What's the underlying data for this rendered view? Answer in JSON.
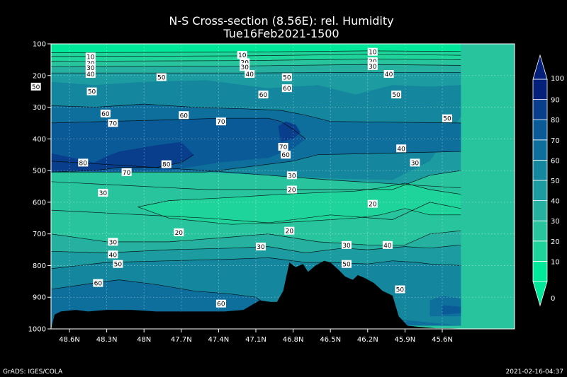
{
  "chart_data": {
    "type": "heatmap",
    "title": "N-S Cross-section (8.56E): rel. Humidity",
    "subtitle": "Tue16Feb2021-1500",
    "x_tick_labels": [
      "48.6N",
      "48.3N",
      "48N",
      "47.7N",
      "47.4N",
      "47.1N",
      "46.8N",
      "46.5N",
      "46.2N",
      "45.9N",
      "45.6N"
    ],
    "y_tick_labels": [
      "100",
      "200",
      "300",
      "400",
      "500",
      "600",
      "700",
      "800",
      "900",
      "1000"
    ],
    "y_values": [
      100,
      200,
      300,
      400,
      500,
      600,
      700,
      800,
      900,
      1000
    ],
    "colorbar": {
      "levels": [
        0,
        10,
        20,
        30,
        40,
        50,
        60,
        70,
        80,
        90,
        100
      ],
      "colors": [
        "#00e89a",
        "#1ed49a",
        "#28c49e",
        "#26b0a0",
        "#1c9ca0",
        "#14869e",
        "#0e6e9c",
        "#0b5a98",
        "#083e8c",
        "#05207a"
      ]
    },
    "band_colors": {
      "r0_10": "#00e89a",
      "r10_20": "#1ed49a",
      "r20_30": "#28c49e",
      "r30_40": "#26b0a0",
      "r40_50": "#1c9ca0",
      "r50_60": "#14869e",
      "r60_70": "#0e6e9c",
      "r70_80": "#0b5a98",
      "r80_90": "#083e8c",
      "r90_100": "#05207a"
    },
    "contour_labels": [
      {
        "text": "10",
        "x": 48.43,
        "y": 140
      },
      {
        "text": "20",
        "x": 48.43,
        "y": 160
      },
      {
        "text": "30",
        "x": 48.43,
        "y": 175
      },
      {
        "text": "40",
        "x": 48.43,
        "y": 195
      },
      {
        "text": "10",
        "x": 47.21,
        "y": 135
      },
      {
        "text": "20",
        "x": 47.19,
        "y": 158
      },
      {
        "text": "30",
        "x": 47.19,
        "y": 173
      },
      {
        "text": "40",
        "x": 47.15,
        "y": 195
      },
      {
        "text": "10",
        "x": 46.16,
        "y": 125
      },
      {
        "text": "20",
        "x": 46.16,
        "y": 155
      },
      {
        "text": "30",
        "x": 46.16,
        "y": 170
      },
      {
        "text": "40",
        "x": 46.03,
        "y": 195
      },
      {
        "text": "50",
        "x": 48.87,
        "y": 235
      },
      {
        "text": "50",
        "x": 47.86,
        "y": 205
      },
      {
        "text": "50",
        "x": 48.42,
        "y": 250
      },
      {
        "text": "50",
        "x": 46.85,
        "y": 205
      },
      {
        "text": "60",
        "x": 47.04,
        "y": 260
      },
      {
        "text": "60",
        "x": 46.85,
        "y": 240
      },
      {
        "text": "50",
        "x": 45.97,
        "y": 260
      },
      {
        "text": "60",
        "x": 48.31,
        "y": 320
      },
      {
        "text": "60",
        "x": 47.68,
        "y": 325
      },
      {
        "text": "70",
        "x": 48.25,
        "y": 350
      },
      {
        "text": "70",
        "x": 47.38,
        "y": 345
      },
      {
        "text": "50",
        "x": 45.56,
        "y": 335
      },
      {
        "text": "80",
        "x": 48.49,
        "y": 475
      },
      {
        "text": "80",
        "x": 47.82,
        "y": 480
      },
      {
        "text": "70",
        "x": 48.14,
        "y": 505
      },
      {
        "text": "70",
        "x": 46.88,
        "y": 425
      },
      {
        "text": "60",
        "x": 46.86,
        "y": 450
      },
      {
        "text": "40",
        "x": 45.93,
        "y": 430
      },
      {
        "text": "30",
        "x": 45.82,
        "y": 475
      },
      {
        "text": "30",
        "x": 46.81,
        "y": 515
      },
      {
        "text": "20",
        "x": 46.81,
        "y": 560
      },
      {
        "text": "30",
        "x": 48.33,
        "y": 570
      },
      {
        "text": "20",
        "x": 46.16,
        "y": 605
      },
      {
        "text": "20",
        "x": 47.72,
        "y": 695
      },
      {
        "text": "20",
        "x": 46.83,
        "y": 690
      },
      {
        "text": "30",
        "x": 48.25,
        "y": 725
      },
      {
        "text": "30",
        "x": 47.06,
        "y": 740
      },
      {
        "text": "30",
        "x": 46.37,
        "y": 735
      },
      {
        "text": "40",
        "x": 46.04,
        "y": 735
      },
      {
        "text": "40",
        "x": 48.25,
        "y": 765
      },
      {
        "text": "50",
        "x": 48.21,
        "y": 795
      },
      {
        "text": "50",
        "x": 46.37,
        "y": 795
      },
      {
        "text": "60",
        "x": 48.37,
        "y": 855
      },
      {
        "text": "60",
        "x": 47.38,
        "y": 920
      },
      {
        "text": "50",
        "x": 45.94,
        "y": 875
      }
    ],
    "terrain_surface_hpa": [
      {
        "x": 48.72,
        "y": 955
      },
      {
        "x": 48.67,
        "y": 945
      },
      {
        "x": 48.55,
        "y": 940
      },
      {
        "x": 48.45,
        "y": 945
      },
      {
        "x": 48.3,
        "y": 940
      },
      {
        "x": 48.1,
        "y": 940
      },
      {
        "x": 47.9,
        "y": 945
      },
      {
        "x": 47.7,
        "y": 945
      },
      {
        "x": 47.5,
        "y": 945
      },
      {
        "x": 47.35,
        "y": 945
      },
      {
        "x": 47.2,
        "y": 940
      },
      {
        "x": 47.07,
        "y": 910
      },
      {
        "x": 46.98,
        "y": 915
      },
      {
        "x": 46.93,
        "y": 915
      },
      {
        "x": 46.88,
        "y": 880
      },
      {
        "x": 46.83,
        "y": 790
      },
      {
        "x": 46.78,
        "y": 805
      },
      {
        "x": 46.72,
        "y": 795
      },
      {
        "x": 46.68,
        "y": 820
      },
      {
        "x": 46.62,
        "y": 800
      },
      {
        "x": 46.55,
        "y": 785
      },
      {
        "x": 46.5,
        "y": 790
      },
      {
        "x": 46.43,
        "y": 815
      },
      {
        "x": 46.38,
        "y": 835
      },
      {
        "x": 46.32,
        "y": 845
      },
      {
        "x": 46.28,
        "y": 830
      },
      {
        "x": 46.22,
        "y": 840
      },
      {
        "x": 46.15,
        "y": 855
      },
      {
        "x": 46.08,
        "y": 880
      },
      {
        "x": 46.0,
        "y": 895
      },
      {
        "x": 45.95,
        "y": 960
      },
      {
        "x": 45.88,
        "y": 990
      },
      {
        "x": 45.75,
        "y": 995
      },
      {
        "x": 45.65,
        "y": 998
      },
      {
        "x": 45.55,
        "y": 998
      }
    ]
  },
  "footer": {
    "left": "GrADS: IGES/COLA",
    "right": "2021-02-16-04:37"
  }
}
